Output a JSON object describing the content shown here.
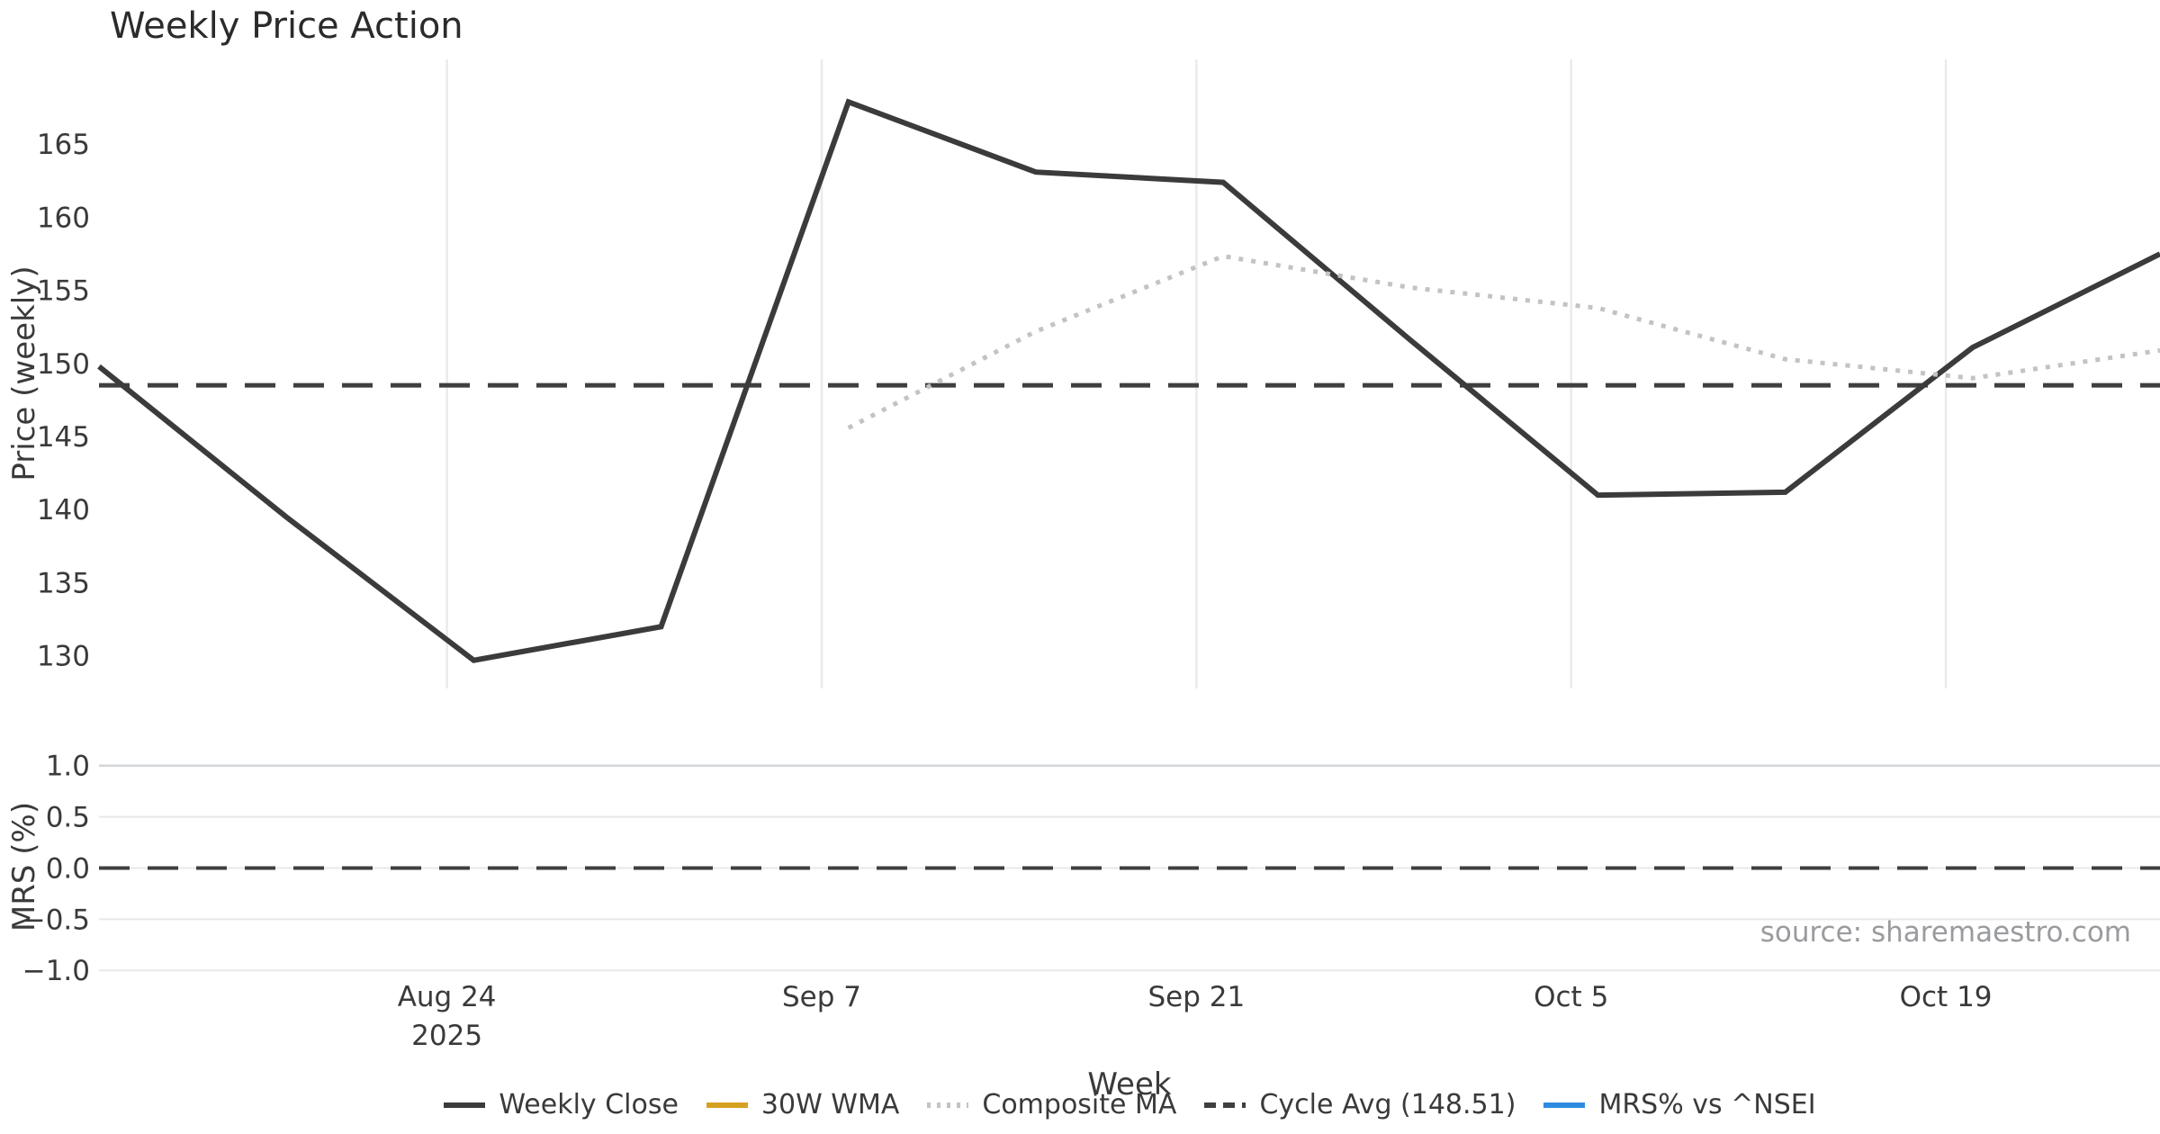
{
  "title": "Weekly Price Action",
  "source": "source: sharemaestro.com",
  "chart_data": {
    "type": "line",
    "title": "Weekly Price Action",
    "xlabel": "Week",
    "legend_position": "bottom-center",
    "grid": {
      "price_panel": "vertical-only",
      "mrs_panel": "horizontal-only"
    },
    "x_dates": [
      "2025-08-11",
      "2025-08-18",
      "2025-08-25",
      "2025-09-01",
      "2025-09-08",
      "2025-09-15",
      "2025-09-22",
      "2025-09-29",
      "2025-10-06",
      "2025-10-13",
      "2025-10-20",
      "2025-10-27"
    ],
    "xticks": [
      {
        "lines": [
          "Aug 24",
          "2025"
        ],
        "date": "2025-08-24"
      },
      {
        "lines": [
          "Sep 7"
        ],
        "date": "2025-09-07"
      },
      {
        "lines": [
          "Sep 21"
        ],
        "date": "2025-09-21"
      },
      {
        "lines": [
          "Oct 5"
        ],
        "date": "2025-10-05"
      },
      {
        "lines": [
          "Oct 19"
        ],
        "date": "2025-10-19"
      }
    ],
    "panels": [
      {
        "name": "price",
        "ylabel": "Price (weekly)",
        "ylim": [
          127.8,
          170.8
        ],
        "yticks": [
          {
            "v": 130,
            "label": "130"
          },
          {
            "v": 135,
            "label": "135"
          },
          {
            "v": 140,
            "label": "140"
          },
          {
            "v": 145,
            "label": "145"
          },
          {
            "v": 150,
            "label": "150"
          },
          {
            "v": 155,
            "label": "155"
          },
          {
            "v": 160,
            "label": "160"
          },
          {
            "v": 165,
            "label": "165"
          }
        ],
        "series": [
          {
            "name": "Weekly Close",
            "color": "#3b3b3b",
            "style": "solid",
            "width": 6,
            "values": [
              149.8,
              139.5,
              129.7,
              132.0,
              167.9,
              163.1,
              162.4,
              151.6,
              141.0,
              141.2,
              151.1,
              157.5
            ]
          },
          {
            "name": "30W WMA",
            "color": "#d7a022",
            "style": "solid",
            "width": 6,
            "values": []
          },
          {
            "name": "Composite MA",
            "color": "#c3c3c3",
            "style": "dotted",
            "width": 5,
            "values": [
              null,
              null,
              null,
              null,
              145.6,
              152.2,
              157.35,
              155.2,
              153.8,
              150.3,
              149.0,
              150.9
            ]
          }
        ],
        "hline": {
          "name": "Cycle Avg (148.51)",
          "value": 148.51,
          "color": "#3f3f3f",
          "style": "dashed",
          "width": 5
        }
      },
      {
        "name": "mrs",
        "ylabel": "MRS (%)",
        "ylim": [
          -1.05,
          1.05
        ],
        "yticks": [
          {
            "v": 1.0,
            "label": "1.0"
          },
          {
            "v": 0.5,
            "label": "0.5"
          },
          {
            "v": 0.0,
            "label": "0.0"
          },
          {
            "v": -0.5,
            "label": "−0.5"
          },
          {
            "v": -1.0,
            "label": "−1.0"
          }
        ],
        "series": [
          {
            "name": "MRS% vs ^NSEI",
            "color": "#2e8ce0",
            "style": "solid",
            "width": 6,
            "values": []
          }
        ],
        "hline": {
          "name": "zero-line",
          "value": 0.0,
          "color": "#3f3f3f",
          "style": "dashed",
          "width": 4
        }
      }
    ]
  },
  "legend": {
    "items": [
      {
        "label": "Weekly Close",
        "color": "#3b3b3b",
        "style": "solid"
      },
      {
        "label": "30W WMA",
        "color": "#d7a022",
        "style": "solid"
      },
      {
        "label": "Composite MA",
        "color": "#c3c3c3",
        "style": "dotted"
      },
      {
        "label": "Cycle Avg (148.51)",
        "color": "#3f3f3f",
        "style": "dashed"
      },
      {
        "label": "MRS% vs ^NSEI",
        "color": "#2e8ce0",
        "style": "solid"
      }
    ]
  },
  "colors": {
    "text": "#3a3a3a",
    "title": "#2b2b2b",
    "grid_vertical": "#e8ebee",
    "grid_horizontal": "#e8e8e8",
    "grid_horizontal_top": "#d3d6d8",
    "source_text": "#999b9e",
    "background": "#ffffff"
  }
}
